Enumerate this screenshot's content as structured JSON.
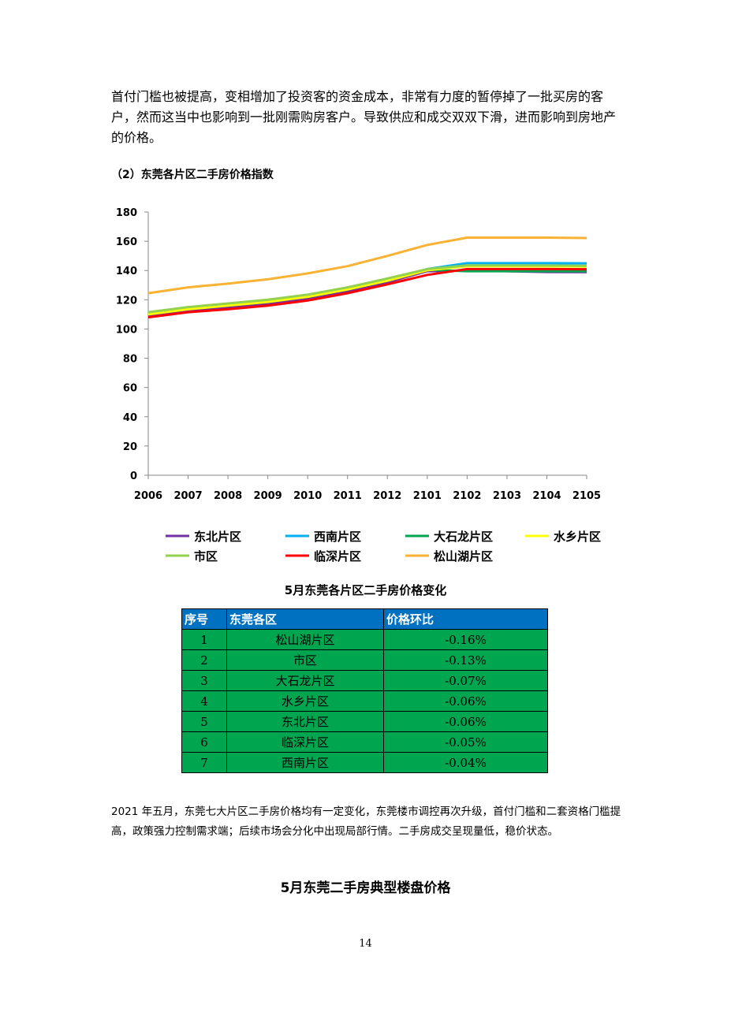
{
  "paragraph1": "首付门槛也被提高，变相增加了投资客的资金成本，非常有力度的暂停掉了一批买房的客户，然而这当中也影响到一批刚需购房客户。导致供应和成交双双下滑，进而影响到房地产的价格。",
  "section_title": "（2）东莞各片区二手房价格指数",
  "chart_data": {
    "type": "line",
    "title": "",
    "xlabel": "",
    "ylabel": "",
    "ylim": [
      0,
      180
    ],
    "yticks": [
      "0",
      "20",
      "40",
      "60",
      "80",
      "100",
      "120",
      "140",
      "160",
      "180"
    ],
    "categories": [
      "2006",
      "2007",
      "2008",
      "2009",
      "2010",
      "2011",
      "2012",
      "2101",
      "2102",
      "2103",
      "2104",
      "2105"
    ],
    "grid": false,
    "legend_position": "bottom",
    "series": [
      {
        "name": "东北片区",
        "color": "#7030a0",
        "values": [
          109,
          112.5,
          115,
          117.5,
          121,
          126,
          132,
          139.5,
          140,
          139.5,
          139,
          138.9
        ]
      },
      {
        "name": "西南片区",
        "color": "#00b0f0",
        "values": [
          110.5,
          114,
          116.5,
          119,
          122.5,
          127.5,
          133.5,
          141,
          145,
          145,
          145,
          144.9
        ]
      },
      {
        "name": "大石龙片区",
        "color": "#00a550",
        "values": [
          111,
          114.5,
          117,
          119.5,
          123,
          128,
          134,
          140.5,
          139.5,
          139.5,
          139.5,
          139.4
        ]
      },
      {
        "name": "水乡片区",
        "color": "#ffff00",
        "values": [
          110,
          113.5,
          116,
          118.5,
          122,
          127,
          133,
          140.2,
          143,
          143,
          142.8,
          142.7
        ]
      },
      {
        "name": "市区",
        "color": "#92d050",
        "values": [
          111.5,
          115,
          117.5,
          120,
          123.5,
          128.5,
          134.5,
          141,
          143.5,
          143.5,
          143.4,
          143.2
        ]
      },
      {
        "name": "临深片区",
        "color": "#ff0000",
        "values": [
          108,
          111.5,
          113.5,
          116,
          119.5,
          124.5,
          130.5,
          137,
          141,
          141,
          141,
          140.9
        ]
      },
      {
        "name": "松山湖片区",
        "color": "#f9b233",
        "values": [
          124.5,
          128.5,
          131,
          134,
          138,
          143,
          150,
          157.5,
          162.5,
          162.5,
          162.5,
          162.2
        ]
      }
    ]
  },
  "table_caption": "5月东莞各片区二手房价格变化",
  "table": {
    "headers": [
      "序号",
      "东莞各区",
      "价格环比"
    ],
    "rows": [
      [
        "1",
        "松山湖片区",
        "-0.16%"
      ],
      [
        "2",
        "市区",
        "-0.13%"
      ],
      [
        "3",
        "大石龙片区",
        "-0.07%"
      ],
      [
        "4",
        "水乡片区",
        "-0.06%"
      ],
      [
        "5",
        "东北片区",
        "-0.06%"
      ],
      [
        "6",
        "临深片区",
        "-0.05%"
      ],
      [
        "7",
        "西南片区",
        "-0.04%"
      ]
    ]
  },
  "paragraph2": "2021 年五月，东莞七大片区二手房价格均有一定变化，东莞楼市调控再次升级，首付门槛和二套资格门槛提高，政策强力控制需求端；后续市场会分化中出现局部行情。二手房成交呈现量低，稳价状态。",
  "heading2": "5月东莞二手房典型楼盘价格",
  "page_number": "14"
}
